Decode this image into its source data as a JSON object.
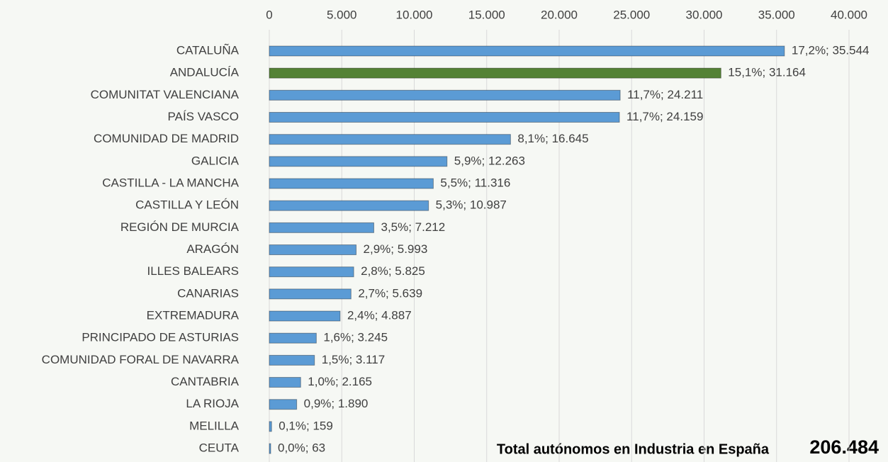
{
  "chart_data": {
    "type": "bar",
    "orientation": "horizontal",
    "categories": [
      "CATALUÑA",
      "ANDALUCÍA",
      "COMUNITAT VALENCIANA",
      "PAÍS VASCO",
      "COMUNIDAD DE MADRID",
      "GALICIA",
      "CASTILLA - LA MANCHA",
      "CASTILLA Y LEÓN",
      "REGIÓN DE MURCIA",
      "ARAGÓN",
      "ILLES BALEARS",
      "CANARIAS",
      "EXTREMADURA",
      "PRINCIPADO DE ASTURIAS",
      "COMUNIDAD FORAL DE NAVARRA",
      "CANTABRIA",
      "LA RIOJA",
      "MELILLA",
      "CEUTA"
    ],
    "values": [
      35544,
      31164,
      24211,
      24159,
      16645,
      12263,
      11316,
      10987,
      7212,
      5993,
      5825,
      5639,
      4887,
      3245,
      3117,
      2165,
      1890,
      159,
      63
    ],
    "value_labels": [
      "17,2%; 35.544",
      "15,1%; 31.164",
      "11,7%; 24.211",
      "11,7%; 24.159",
      "8,1%; 16.645",
      "5,9%; 12.263",
      "5,5%; 11.316",
      "5,3%; 10.987",
      "3,5%; 7.212",
      "2,9%; 5.993",
      "2,8%; 5.825",
      "2,7%; 5.639",
      "2,4%; 4.887",
      "1,6%; 3.245",
      "1,5%; 3.117",
      "1,0%; 2.165",
      "0,9%; 1.890",
      "0,1%; 159",
      "0,0%; 63"
    ],
    "colors": [
      "#5b9bd5",
      "#548235",
      "#5b9bd5",
      "#5b9bd5",
      "#5b9bd5",
      "#5b9bd5",
      "#5b9bd5",
      "#5b9bd5",
      "#5b9bd5",
      "#5b9bd5",
      "#5b9bd5",
      "#5b9bd5",
      "#5b9bd5",
      "#5b9bd5",
      "#5b9bd5",
      "#5b9bd5",
      "#5b9bd5",
      "#5b9bd5",
      "#5b9bd5"
    ],
    "xlim": [
      0,
      40000
    ],
    "xticks": [
      0,
      {
        "value": 5000,
        "label": "5.000"
      },
      {
        "value": 10000,
        "label": "10.000"
      },
      {
        "value": 15000,
        "label": "15.000"
      },
      {
        "value": 20000,
        "label": "20.000"
      },
      {
        "value": 25000,
        "label": "25.000"
      },
      {
        "value": 30000,
        "label": "30.000"
      },
      {
        "value": 35000,
        "label": "35.000"
      },
      {
        "value": 40000,
        "label": "40.000"
      }
    ],
    "grid": true,
    "annotations": [
      "Total autónomos en Industria en España",
      "206.484"
    ]
  }
}
